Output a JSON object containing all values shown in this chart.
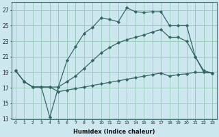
{
  "xlabel": "Humidex (Indice chaleur)",
  "bg_color": "#cce8ee",
  "grid_color": "#99ccbb",
  "line_color": "#336666",
  "xlim": [
    -0.5,
    23.5
  ],
  "ylim": [
    13,
    28
  ],
  "xticks": [
    0,
    1,
    2,
    3,
    4,
    5,
    6,
    7,
    8,
    9,
    10,
    11,
    12,
    13,
    14,
    15,
    16,
    17,
    18,
    19,
    20,
    21,
    22,
    23
  ],
  "yticks": [
    13,
    15,
    17,
    19,
    21,
    23,
    25,
    27
  ],
  "line1_x": [
    0,
    1,
    2,
    3,
    4,
    5,
    6,
    7,
    8,
    9,
    10,
    11,
    12,
    13,
    14,
    15,
    16,
    17,
    18,
    19,
    20,
    21,
    22,
    23
  ],
  "line1_y": [
    19.2,
    17.8,
    17.1,
    17.1,
    13.2,
    17.1,
    20.5,
    22.3,
    24.0,
    24.8,
    26.0,
    25.8,
    25.5,
    27.3,
    26.8,
    26.7,
    26.8,
    26.8,
    25.0,
    25.0,
    25.0,
    21.0,
    19.2,
    18.9
  ],
  "line2_x": [
    0,
    1,
    2,
    3,
    4,
    5,
    6,
    7,
    8,
    9,
    10,
    11,
    12,
    13,
    14,
    15,
    16,
    17,
    18,
    19,
    20,
    21,
    22,
    23
  ],
  "line2_y": [
    19.2,
    17.8,
    17.1,
    17.1,
    17.1,
    17.1,
    17.8,
    18.5,
    19.5,
    20.5,
    21.5,
    22.2,
    22.8,
    23.2,
    23.5,
    23.8,
    24.2,
    24.5,
    23.5,
    23.5,
    23.0,
    21.0,
    19.0,
    18.9
  ],
  "line3_x": [
    0,
    1,
    2,
    3,
    4,
    5,
    6,
    7,
    8,
    9,
    10,
    11,
    12,
    13,
    14,
    15,
    16,
    17,
    18,
    19,
    20,
    21,
    22,
    23
  ],
  "line3_y": [
    19.2,
    17.8,
    17.1,
    17.1,
    17.1,
    16.5,
    16.7,
    16.9,
    17.1,
    17.3,
    17.5,
    17.7,
    17.9,
    18.1,
    18.3,
    18.5,
    18.7,
    18.9,
    18.5,
    18.7,
    18.8,
    19.0,
    19.0,
    18.9
  ]
}
